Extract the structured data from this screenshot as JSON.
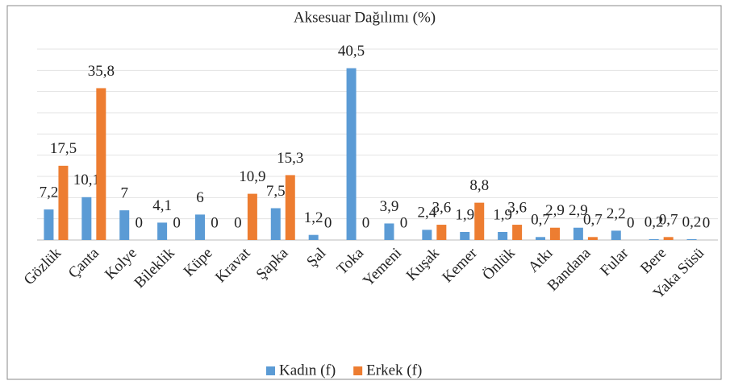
{
  "chart_data": {
    "type": "bar",
    "title": "Aksesuar Dağılımı (%)",
    "categories": [
      "Gözlük",
      "Çanta",
      "Kolye",
      "Bileklik",
      "Küpe",
      "Kravat",
      "Şapka",
      "Şal",
      "Toka",
      "Yemeni",
      "Kuşak",
      "Kemer",
      "Önlük",
      "Atkı",
      "Bandana",
      "Fular",
      "Bere",
      "Yaka Süsü"
    ],
    "series": [
      {
        "name": "Kadın (f)",
        "color": "#5b9bd5",
        "values": [
          7.2,
          10.1,
          7,
          4.1,
          6,
          0,
          7.5,
          1.2,
          40.5,
          3.9,
          2.4,
          1.9,
          1.9,
          0.7,
          2.9,
          2.2,
          0.2,
          0.2
        ],
        "value_labels": [
          "7,2",
          "10,1",
          "7",
          "4,1",
          "6",
          "0",
          "7,5",
          "1,2",
          "40,5",
          "3,9",
          "2,4",
          "1,9",
          "1,9",
          "0,7",
          "2,9",
          "2,2",
          "0,2",
          "0,2"
        ]
      },
      {
        "name": "Erkek (f)",
        "color": "#ed7d31",
        "values": [
          17.5,
          35.8,
          0,
          0,
          0,
          10.9,
          15.3,
          0,
          0,
          0,
          3.6,
          8.8,
          3.6,
          2.9,
          0.7,
          0,
          0.7,
          0
        ],
        "value_labels": [
          "17,5",
          "35,8",
          "0",
          "0",
          "0",
          "10,9",
          "15,3",
          "0",
          "0",
          "0",
          "3,6",
          "8,8",
          "3,6",
          "2,9",
          "0,7",
          "0",
          "0,7",
          "0"
        ]
      }
    ],
    "ylim": [
      0,
      45
    ],
    "yticks": [
      0,
      5,
      10,
      15,
      20,
      25,
      30,
      35,
      40,
      45
    ],
    "grid": true,
    "legend": "bottom"
  }
}
